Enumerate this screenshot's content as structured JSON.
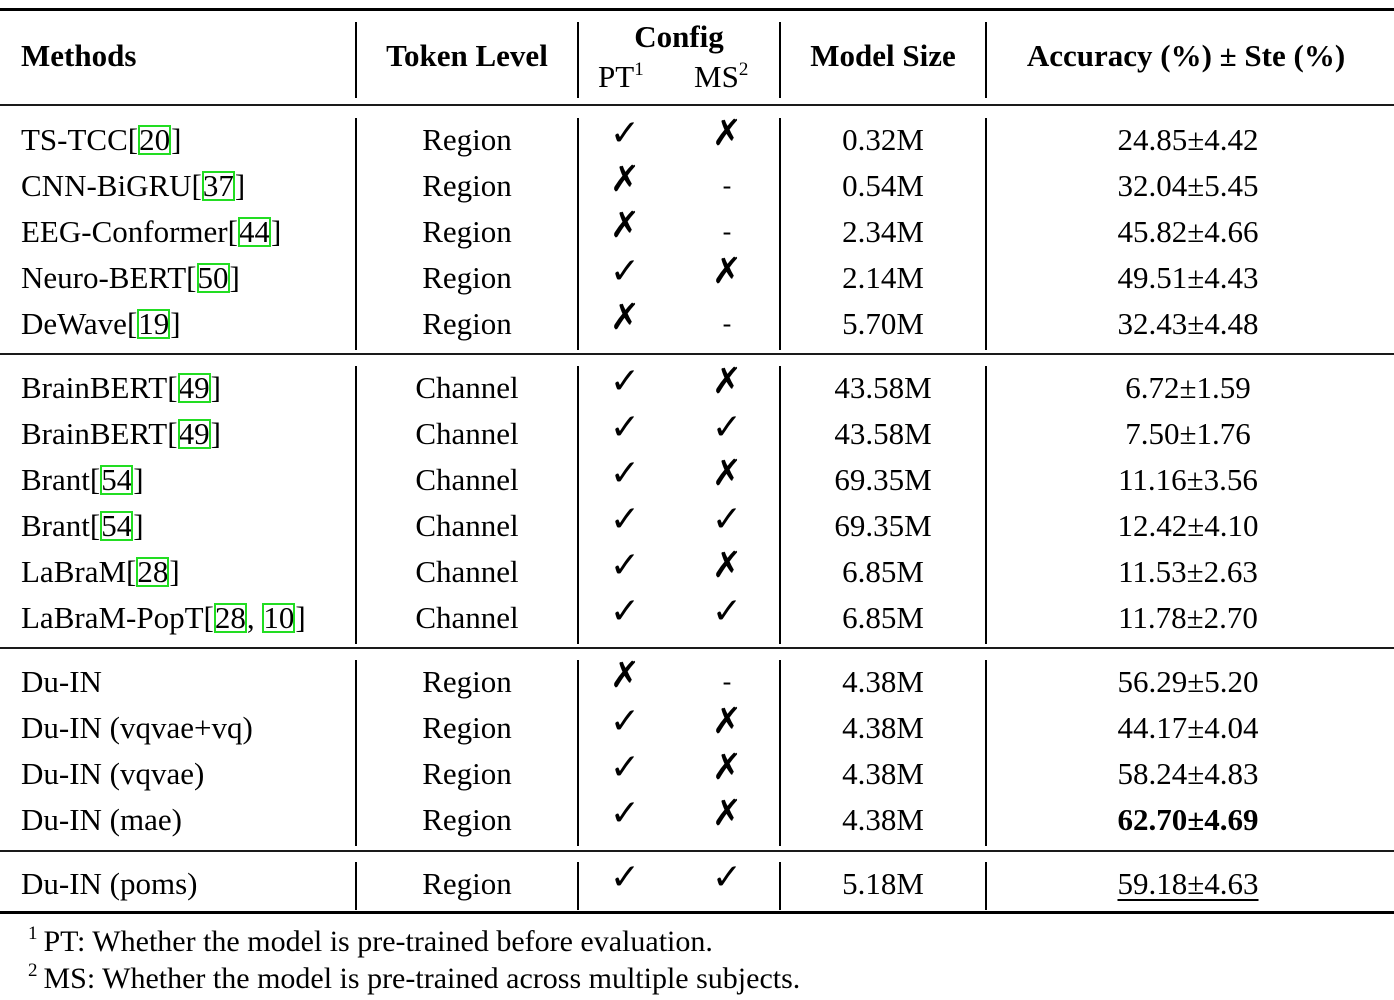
{
  "table": {
    "columns": {
      "methods": "Methods",
      "token_level": "Token Level",
      "config": "Config",
      "pt": "PT",
      "pt_note": "1",
      "ms": "MS",
      "ms_note": "2",
      "model_size": "Model Size",
      "accuracy": "Accuracy (%) ± Ste (%)"
    },
    "groups": [
      {
        "rows": [
          {
            "method": "TS-TCC",
            "cites": [
              "20"
            ],
            "token": "Region",
            "pt": "✓",
            "ms": "✗",
            "size": "0.32M",
            "acc": "24.85±4.42",
            "style": "normal"
          },
          {
            "method": "CNN-BiGRU",
            "cites": [
              "37"
            ],
            "token": "Region",
            "pt": "✗",
            "ms": "-",
            "size": "0.54M",
            "acc": "32.04±5.45",
            "style": "normal"
          },
          {
            "method": "EEG-Conformer",
            "cites": [
              "44"
            ],
            "token": "Region",
            "pt": "✗",
            "ms": "-",
            "size": "2.34M",
            "acc": "45.82±4.66",
            "style": "normal"
          },
          {
            "method": "Neuro-BERT",
            "cites": [
              "50"
            ],
            "token": "Region",
            "pt": "✓",
            "ms": "✗",
            "size": "2.14M",
            "acc": "49.51±4.43",
            "style": "normal"
          },
          {
            "method": "DeWave",
            "cites": [
              "19"
            ],
            "token": "Region",
            "pt": "✗",
            "ms": "-",
            "size": "5.70M",
            "acc": "32.43±4.48",
            "style": "normal"
          }
        ]
      },
      {
        "rows": [
          {
            "method": "BrainBERT",
            "cites": [
              "49"
            ],
            "token": "Channel",
            "pt": "✓",
            "ms": "✗",
            "size": "43.58M",
            "acc": "6.72±1.59",
            "style": "normal"
          },
          {
            "method": "BrainBERT",
            "cites": [
              "49"
            ],
            "token": "Channel",
            "pt": "✓",
            "ms": "✓",
            "size": "43.58M",
            "acc": "7.50±1.76",
            "style": "normal"
          },
          {
            "method": "Brant",
            "cites": [
              "54"
            ],
            "token": "Channel",
            "pt": "✓",
            "ms": "✗",
            "size": "69.35M",
            "acc": "11.16±3.56",
            "style": "normal"
          },
          {
            "method": "Brant",
            "cites": [
              "54"
            ],
            "token": "Channel",
            "pt": "✓",
            "ms": "✓",
            "size": "69.35M",
            "acc": "12.42±4.10",
            "style": "normal"
          },
          {
            "method": "LaBraM",
            "cites": [
              "28"
            ],
            "token": "Channel",
            "pt": "✓",
            "ms": "✗",
            "size": "6.85M",
            "acc": "11.53±2.63",
            "style": "normal"
          },
          {
            "method": "LaBraM-PopT",
            "cites": [
              "28",
              "10"
            ],
            "token": "Channel",
            "pt": "✓",
            "ms": "✓",
            "size": "6.85M",
            "acc": "11.78±2.70",
            "style": "normal"
          }
        ]
      },
      {
        "rows": [
          {
            "method": "Du-IN",
            "cites": [],
            "token": "Region",
            "pt": "✗",
            "ms": "-",
            "size": "4.38M",
            "acc": "56.29±5.20",
            "style": "normal"
          },
          {
            "method": "Du-IN (vqvae+vq)",
            "cites": [],
            "token": "Region",
            "pt": "✓",
            "ms": "✗",
            "size": "4.38M",
            "acc": "44.17±4.04",
            "style": "normal"
          },
          {
            "method": "Du-IN (vqvae)",
            "cites": [],
            "token": "Region",
            "pt": "✓",
            "ms": "✗",
            "size": "4.38M",
            "acc": "58.24±4.83",
            "style": "normal"
          },
          {
            "method": "Du-IN (mae)",
            "cites": [],
            "token": "Region",
            "pt": "✓",
            "ms": "✗",
            "size": "4.38M",
            "acc": "62.70±4.69",
            "style": "bold"
          }
        ]
      },
      {
        "rows": [
          {
            "method": "Du-IN (poms)",
            "cites": [],
            "token": "Region",
            "pt": "✓",
            "ms": "✓",
            "size": "5.18M",
            "acc": "59.18±4.63",
            "style": "underline"
          }
        ]
      }
    ],
    "colors": {
      "citation_box": "#22dd22",
      "text": "#000000"
    }
  },
  "footnotes": [
    {
      "mark": "1",
      "text": "PT: Whether the model is pre-trained before evaluation."
    },
    {
      "mark": "2",
      "text": "MS: Whether the model is pre-trained across multiple subjects."
    }
  ]
}
